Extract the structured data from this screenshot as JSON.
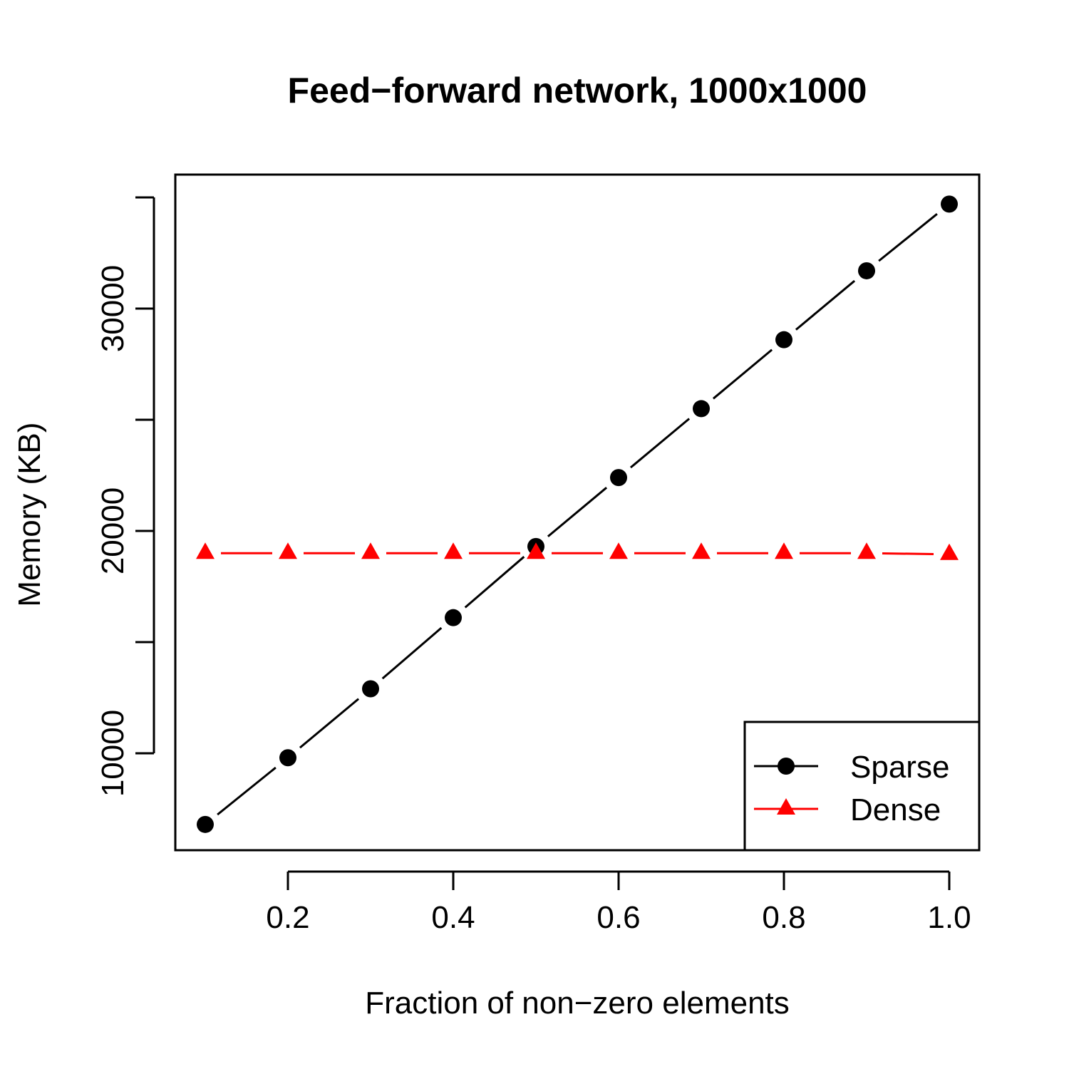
{
  "chart_data": {
    "type": "line",
    "title": "Feed−forward network, 1000x1000",
    "xlabel": "Fraction of non−zero elements",
    "ylabel": "Memory (KB)",
    "xlim": [
      0.1,
      1.0
    ],
    "ylim": [
      5500,
      36000
    ],
    "x_ticks": [
      0.2,
      0.4,
      0.6,
      0.8,
      1.0
    ],
    "x_tick_labels": [
      "0.2",
      "0.4",
      "0.6",
      "0.8",
      "1.0"
    ],
    "y_ticks": [
      10000,
      15000,
      20000,
      25000,
      30000,
      35000
    ],
    "y_tick_labels": [
      "10000",
      "",
      "20000",
      "",
      "30000",
      ""
    ],
    "x": [
      0.1,
      0.2,
      0.3,
      0.4,
      0.5,
      0.6,
      0.7,
      0.8,
      0.9,
      1.0
    ],
    "series": [
      {
        "name": "Sparse",
        "color": "#000000",
        "marker": "circle",
        "values": [
          6800,
          9800,
          12900,
          16100,
          19300,
          22400,
          25500,
          28600,
          31700,
          34700
        ]
      },
      {
        "name": "Dense",
        "color": "#ff0000",
        "marker": "triangle",
        "values": [
          19000,
          19000,
          19000,
          19000,
          19000,
          19000,
          19000,
          19000,
          19000,
          18950
        ]
      }
    ],
    "legend_position": "bottom-right",
    "grid": false
  }
}
